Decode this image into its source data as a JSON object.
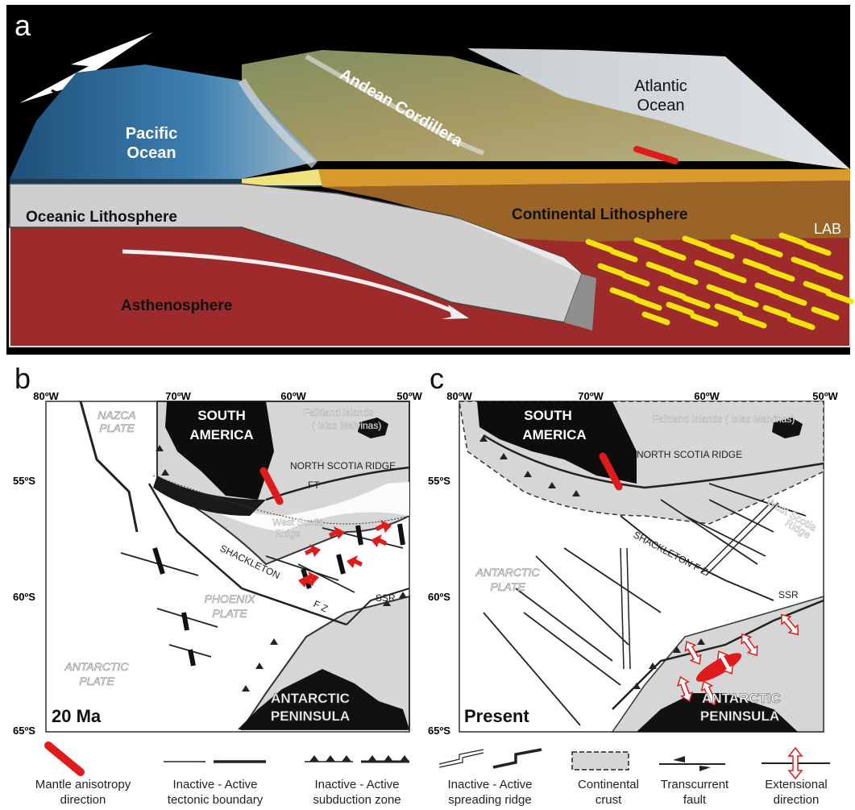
{
  "panel_a": {
    "letter": "a",
    "labels": {
      "pacific": [
        "Pacific",
        "Ocean"
      ],
      "atlantic": [
        "Atlantic",
        "Ocean"
      ],
      "andes": "Andean Cordillera",
      "oceanic_lith": "Oceanic Lithosphere",
      "continental_lith": "Continental Lithosphere",
      "asthenosphere": "Asthenosphere",
      "lab": "LAB"
    },
    "colors": {
      "background": "#000000",
      "asthenosphere": "#9e2b2b",
      "continental_lith": "#9a6328",
      "crust": "#d89a2c",
      "oceanic_lith": "#cfcfcf",
      "ocean": "#2f6f9f",
      "land": "#8b9a6a",
      "anisotropy_marker": "#e01b1b",
      "anisotropy_lines": "#f2e30c"
    }
  },
  "panel_b": {
    "letter": "b",
    "time_label": "20 Ma",
    "lon_ticks": [
      "80ºW",
      "70ºW",
      "60ºW",
      "50ºW"
    ],
    "lat_ticks": [
      "55ºS",
      "60ºS",
      "65ºS"
    ],
    "labels": {
      "nazca": [
        "NAZCA",
        "PLATE"
      ],
      "south_america": [
        "SOUTH",
        "AMERICA"
      ],
      "falklands": [
        "Falkland Islands",
        "( Islas Malvinas)"
      ],
      "north_scotia": "NORTH SCOTIA RIDGE",
      "ft": "FT",
      "west_scotia": [
        "West Scotia",
        "Ridge"
      ],
      "shackleton": "SHACKLETON",
      "fz": "F Z",
      "phoenix": [
        "PHOENIX",
        "PLATE"
      ],
      "ssr": "SSR",
      "antarctic_plate": [
        "ANTARCTIC",
        "PLATE"
      ],
      "antarctic_peninsula": [
        "ANTARCTIC",
        "PENINSULA"
      ]
    }
  },
  "panel_c": {
    "letter": "c",
    "time_label": "Present",
    "lon_ticks": [
      "80ºW",
      "70ºW",
      "60ºW",
      "50ºW"
    ],
    "lat_ticks": [
      "55ºS",
      "60ºS",
      "65ºS"
    ],
    "labels": {
      "south_america": [
        "SOUTH",
        "AMERICA"
      ],
      "falklands": "Falkland Islands ( Islas Malvinas)",
      "north_scotia": "NORTH SCOTIA RIDGE",
      "west_scotia": [
        "West Scotia",
        "Ridge"
      ],
      "shackleton": "SHACKLETON F Z",
      "antarctic_plate": [
        "ANTARCTIC",
        "PLATE"
      ],
      "ssr": "SSR",
      "antarctic_peninsula": [
        "ANTARCTIC",
        "PENINSULA"
      ]
    }
  },
  "legend": {
    "items": [
      {
        "icon": "mantle-anisotropy-icon",
        "lines": [
          "Mantle anisotropy",
          "direction"
        ]
      },
      {
        "icon": "tectonic-boundary-icon",
        "lines": [
          "Inactive  -  Active",
          "tectonic boundary"
        ]
      },
      {
        "icon": "subduction-zone-icon",
        "lines": [
          "Inactive  -  Active",
          "subduction zone"
        ]
      },
      {
        "icon": "spreading-ridge-icon",
        "lines": [
          "Inactive  -  Active",
          "spreading ridge"
        ]
      },
      {
        "icon": "continental-crust-icon",
        "lines": [
          "Continental",
          "crust"
        ]
      },
      {
        "icon": "transcurrent-fault-icon",
        "lines": [
          "Transcurrent",
          "fault"
        ]
      },
      {
        "icon": "extensional-direction-icon",
        "lines": [
          "Extensional",
          "direction"
        ]
      }
    ]
  }
}
